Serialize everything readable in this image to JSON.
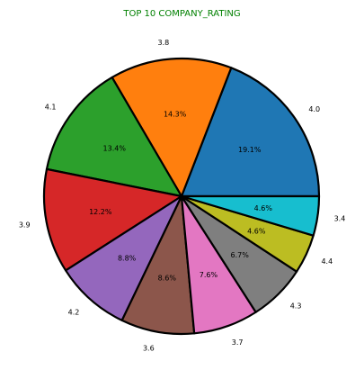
{
  "chart_data": {
    "type": "pie",
    "title": "TOP 10 COMPANY_RATING",
    "title_color": "#008000",
    "start_angle_deg": 0,
    "direction": "counterclockwise",
    "edge_color": "#000000",
    "slices": [
      {
        "label": "4.0",
        "value": 19.1,
        "pct_label": "19.1%",
        "color": "#1f77b4"
      },
      {
        "label": "3.8",
        "value": 14.3,
        "pct_label": "14.3%",
        "color": "#ff7f0e"
      },
      {
        "label": "4.1",
        "value": 13.4,
        "pct_label": "13.4%",
        "color": "#2ca02c"
      },
      {
        "label": "3.9",
        "value": 12.2,
        "pct_label": "12.2%",
        "color": "#d62728"
      },
      {
        "label": "4.2",
        "value": 8.8,
        "pct_label": "8.8%",
        "color": "#9467bd"
      },
      {
        "label": "3.6",
        "value": 8.6,
        "pct_label": "8.6%",
        "color": "#8c564b"
      },
      {
        "label": "3.7",
        "value": 7.6,
        "pct_label": "7.6%",
        "color": "#e377c2"
      },
      {
        "label": "4.3",
        "value": 6.7,
        "pct_label": "6.7%",
        "color": "#7f7f7f"
      },
      {
        "label": "4.4",
        "value": 4.6,
        "pct_label": "4.6%",
        "color": "#bcbd22"
      },
      {
        "label": "3.4",
        "value": 4.6,
        "pct_label": "4.6%",
        "color": "#17becf"
      }
    ]
  }
}
